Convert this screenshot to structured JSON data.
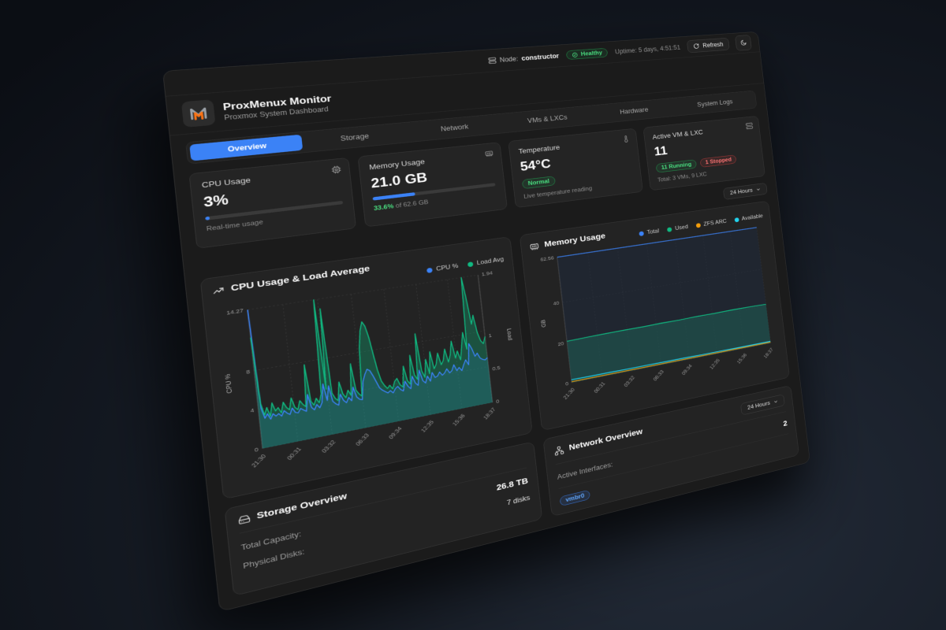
{
  "app": {
    "title": "ProxMenux Monitor",
    "subtitle": "Proxmox System Dashboard"
  },
  "topbar": {
    "node_label": "Node:",
    "node_value": "constructor",
    "health_badge": "Healthy",
    "uptime": "Uptime: 5 days, 4:51:51",
    "refresh_label": "Refresh"
  },
  "tabs": [
    {
      "label": "Overview",
      "active": true
    },
    {
      "label": "Storage",
      "active": false
    },
    {
      "label": "Network",
      "active": false
    },
    {
      "label": "VMs & LXCs",
      "active": false
    },
    {
      "label": "Hardware",
      "active": false
    },
    {
      "label": "System Logs",
      "active": false
    }
  ],
  "metric_cards": {
    "cpu": {
      "label": "CPU Usage",
      "value": "3%",
      "percent": 3,
      "subtitle": "Real-time usage"
    },
    "memory": {
      "label": "Memory Usage",
      "value": "21.0 GB",
      "percent": 33.6,
      "used_pct": "33.6%",
      "of_text": "of 62.6 GB"
    },
    "temperature": {
      "label": "Temperature",
      "value": "54°C",
      "badge": "Normal",
      "subtitle": "Live temperature reading"
    },
    "vms": {
      "label": "Active VM & LXC",
      "value": "11",
      "running_badge": "11 Running",
      "stopped_badge": "1 Stopped",
      "subtitle": "Total: 3 VMs, 9 LXC"
    }
  },
  "time_selector": "24 Hours",
  "storage": {
    "title": "Storage Overview",
    "rows": [
      {
        "label": "Total Capacity:",
        "value": "26.8 TB"
      },
      {
        "label": "Physical Disks:",
        "value": "7 disks"
      }
    ]
  },
  "network": {
    "title": "Network Overview",
    "time_selector": "24 Hours",
    "rows": [
      {
        "label": "Active Interfaces:",
        "value": "2"
      }
    ],
    "interface_badge": "vmbr0"
  },
  "icons": {
    "node": "server-icon",
    "health": "check-circle-icon",
    "refresh": "refresh-icon",
    "theme_toggle": "moon-icon",
    "cpu_card": "cpu-chip-icon",
    "memory_card": "ram-icon",
    "temperature_card": "thermometer-icon",
    "vms_card": "server-stack-icon",
    "cpu_chart": "trend-up-icon",
    "memory_chart": "ram-icon",
    "storage_card": "hard-drive-icon",
    "network_card": "network-nodes-icon",
    "dropdowns": "chevron-down-icon"
  },
  "colors": {
    "accent_blue": "#3b82f6",
    "green": "#22c55e",
    "red": "#ef4444",
    "emerald": "#10b981",
    "orange": "#f59e0b",
    "cyan": "#22d3ee",
    "panel_bg": "#1b1b1b",
    "card_bg": "#232323"
  },
  "chart_data": [
    {
      "type": "line",
      "title": "CPU Usage & Load Average",
      "grid": true,
      "legend_position": "top-right",
      "x_ticks": [
        "21:30",
        "00:31",
        "03:32",
        "06:33",
        "09:34",
        "12:35",
        "15:36",
        "18:37"
      ],
      "left_axis": {
        "label": "CPU %",
        "ticks": [
          0,
          4,
          8,
          14.27
        ],
        "max": 14.27
      },
      "right_axis": {
        "label": "Load",
        "ticks": [
          0,
          0.5,
          1,
          1.94
        ],
        "max": 1.94
      },
      "series": [
        {
          "name": "CPU %",
          "color": "#3b82f6",
          "axis": "left",
          "fill_opacity": 0.18,
          "values": [
            14.27,
            4.1,
            3.0,
            3.4,
            2.8,
            3.3,
            3.0,
            3.2,
            2.9,
            3.4,
            3.1,
            2.9,
            3.5,
            3.0,
            2.9,
            3.3,
            3.1,
            2.9,
            4.6,
            3.2,
            2.9,
            3.4,
            3.0,
            3.5,
            5.4,
            3.6,
            5.1,
            3.4,
            3.1,
            2.9,
            4.0,
            3.3,
            3.0,
            3.5,
            3.1,
            4.5,
            3.4,
            3.1,
            3.0,
            4.9,
            5.6,
            6.1,
            5.9,
            5.3,
            4.6,
            3.9,
            3.6,
            3.4,
            3.2,
            3.4,
            3.1,
            3.5,
            3.7,
            3.3,
            3.1,
            4.1,
            3.5,
            3.2,
            4.5,
            3.7,
            3.4,
            5.0,
            3.8,
            3.5,
            4.2,
            3.6,
            4.5,
            3.9,
            4.0,
            4.4,
            4.0,
            4.2,
            4.6,
            4.1,
            4.3,
            4.9,
            4.2,
            4.5,
            4.1,
            4.7,
            5.2,
            4.6,
            6.9,
            6.3,
            5.4,
            5.7,
            5.1,
            4.9,
            4.8,
            5.0
          ]
        },
        {
          "name": "Load Avg",
          "color": "#10b981",
          "axis": "right",
          "fill_opacity": 0.32,
          "values": [
            1.55,
            0.62,
            0.45,
            0.55,
            0.42,
            0.6,
            0.48,
            0.52,
            0.44,
            0.58,
            0.5,
            0.46,
            0.62,
            0.48,
            0.44,
            0.56,
            0.5,
            0.46,
            1.05,
            0.52,
            0.46,
            0.55,
            0.48,
            0.6,
            1.94,
            0.65,
            1.8,
            0.58,
            0.5,
            0.46,
            0.72,
            0.54,
            0.48,
            0.58,
            0.5,
            0.95,
            0.56,
            0.5,
            0.46,
            1.15,
            1.4,
            1.52,
            1.45,
            1.28,
            1.02,
            0.78,
            0.62,
            0.55,
            0.5,
            0.54,
            0.48,
            0.58,
            0.62,
            0.52,
            0.48,
            0.78,
            0.56,
            0.5,
            0.92,
            0.62,
            0.55,
            1.22,
            0.66,
            0.56,
            0.82,
            0.6,
            0.92,
            0.66,
            0.72,
            0.88,
            0.7,
            0.76,
            0.92,
            0.72,
            0.82,
            1.02,
            0.76,
            0.86,
            0.72,
            0.92,
            1.12,
            0.86,
            1.94,
            1.62,
            1.22,
            1.35,
            1.08,
            0.95,
            0.9,
            1.0
          ]
        }
      ]
    },
    {
      "type": "area",
      "title": "Memory Usage",
      "grid": true,
      "legend_position": "top",
      "x_ticks": [
        "21:30",
        "00:31",
        "03:32",
        "06:33",
        "09:34",
        "12:35",
        "15:36",
        "18:37"
      ],
      "left_axis": {
        "label": "GB",
        "ticks": [
          0,
          20,
          40,
          62.56
        ],
        "max": 62.56
      },
      "series": [
        {
          "name": "Total",
          "color": "#3b82f6",
          "axis": "left",
          "fill_opacity": 0.45,
          "fill_color": "#1c2b40",
          "values": [
            62.56,
            62.56,
            62.56,
            62.56,
            62.56,
            62.56,
            62.56,
            62.56,
            62.56,
            62.56,
            62.56,
            62.56
          ]
        },
        {
          "name": "Used",
          "color": "#10b981",
          "axis": "left",
          "fill_opacity": 0.55,
          "fill_color": "#1f5e56",
          "values": [
            20.6,
            20.8,
            20.9,
            21.0,
            20.9,
            21.1,
            21.0,
            21.2,
            21.1,
            21.3,
            21.2,
            21.0
          ]
        },
        {
          "name": "ZFS ARC",
          "color": "#f59e0b",
          "axis": "left",
          "fill_opacity": 0,
          "values": [
            0.5,
            0.5,
            0.5,
            0.5,
            0.5,
            0.5,
            0.5,
            0.5,
            0.5,
            0.5,
            0.5,
            0.5
          ]
        },
        {
          "name": "Available",
          "color": "#22d3ee",
          "axis": "left",
          "fill_opacity": 0,
          "values": [
            1.5,
            1.4,
            1.4,
            1.3,
            1.3,
            1.2,
            1.2,
            1.1,
            1.1,
            1.0,
            1.0,
            1.0
          ]
        }
      ]
    }
  ]
}
